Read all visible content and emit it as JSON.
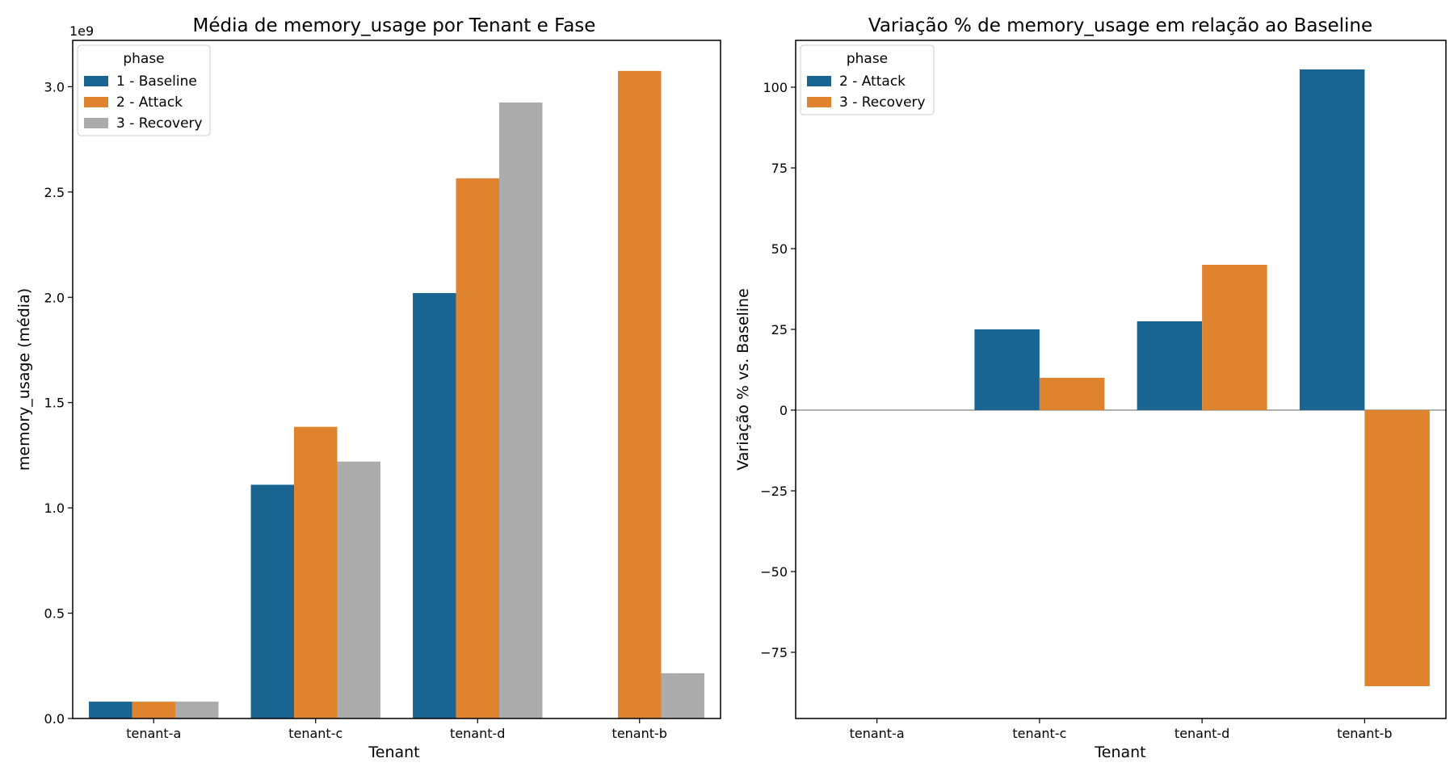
{
  "chart_data": [
    {
      "type": "bar",
      "title": "Média de memory_usage por Tenant e Fase",
      "xlabel": "Tenant",
      "ylabel": "memory_usage (média)",
      "offset_text": "1e9",
      "ylim": [
        0,
        3.22
      ],
      "yticks": [
        0.0,
        0.5,
        1.0,
        1.5,
        2.0,
        2.5,
        3.0
      ],
      "ytick_labels": [
        "0.0",
        "0.5",
        "1.0",
        "1.5",
        "2.0",
        "2.5",
        "3.0"
      ],
      "categories": [
        "tenant-a",
        "tenant-c",
        "tenant-d",
        "tenant-b"
      ],
      "legend": {
        "title": "phase",
        "position": "top-left"
      },
      "series": [
        {
          "name": "1 - Baseline",
          "color": "#1a6491",
          "values": [
            0.08,
            1.11,
            2.02,
            null
          ]
        },
        {
          "name": "2 - Attack",
          "color": "#e0832f",
          "values": [
            0.08,
            1.385,
            2.565,
            3.075
          ]
        },
        {
          "name": "3 - Recovery",
          "color": "#ababab",
          "values": [
            0.08,
            1.22,
            2.925,
            0.215
          ]
        }
      ]
    },
    {
      "type": "bar",
      "title": "Variação % de memory_usage em relação ao Baseline",
      "xlabel": "Tenant",
      "ylabel": "Variação % vs. Baseline",
      "ylim": [
        -95.5,
        114.5
      ],
      "yticks": [
        -75,
        -50,
        -25,
        0,
        25,
        50,
        75,
        100
      ],
      "ytick_labels": [
        "−75",
        "−50",
        "−25",
        "0",
        "25",
        "50",
        "75",
        "100"
      ],
      "categories": [
        "tenant-a",
        "tenant-c",
        "tenant-d",
        "tenant-b"
      ],
      "zero_line": true,
      "legend": {
        "title": "phase",
        "position": "top-left"
      },
      "series": [
        {
          "name": "2 - Attack",
          "color": "#1a6491",
          "values": [
            0,
            25,
            27.5,
            105.5
          ]
        },
        {
          "name": "3 - Recovery",
          "color": "#e0832f",
          "values": [
            0,
            10,
            45,
            -85.5
          ]
        }
      ]
    }
  ]
}
